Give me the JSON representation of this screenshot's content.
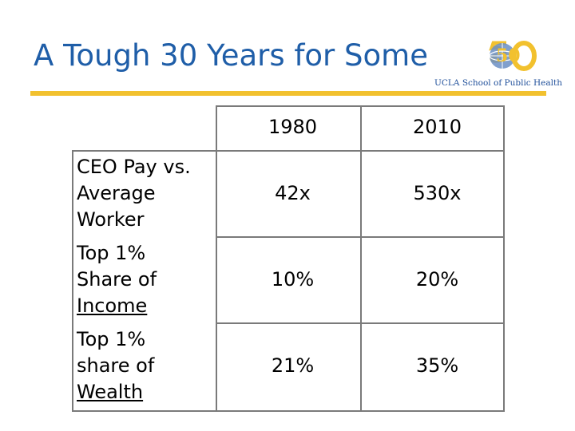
{
  "slide": {
    "title": "A Tough 30 Years for Some",
    "logo_text": "UCLA School of Public Health",
    "logo_number": "50"
  },
  "table": {
    "columns": [
      "1980",
      "2010"
    ],
    "rows": [
      {
        "label_lines": [
          "CEO Pay vs.",
          "Average",
          "Worker"
        ],
        "values": [
          "42x",
          "530x"
        ]
      },
      {
        "label_lines": [
          "Top 1%",
          "Share of",
          "Income"
        ],
        "values": [
          "10%",
          "20%"
        ]
      },
      {
        "label_lines": [
          "Top 1%",
          "share of",
          "Wealth"
        ],
        "values": [
          "21%",
          "35%"
        ]
      }
    ]
  },
  "colors": {
    "title": "#1f5ea8",
    "rule": "#f2c12e",
    "logo_text": "#1f4f9a"
  }
}
